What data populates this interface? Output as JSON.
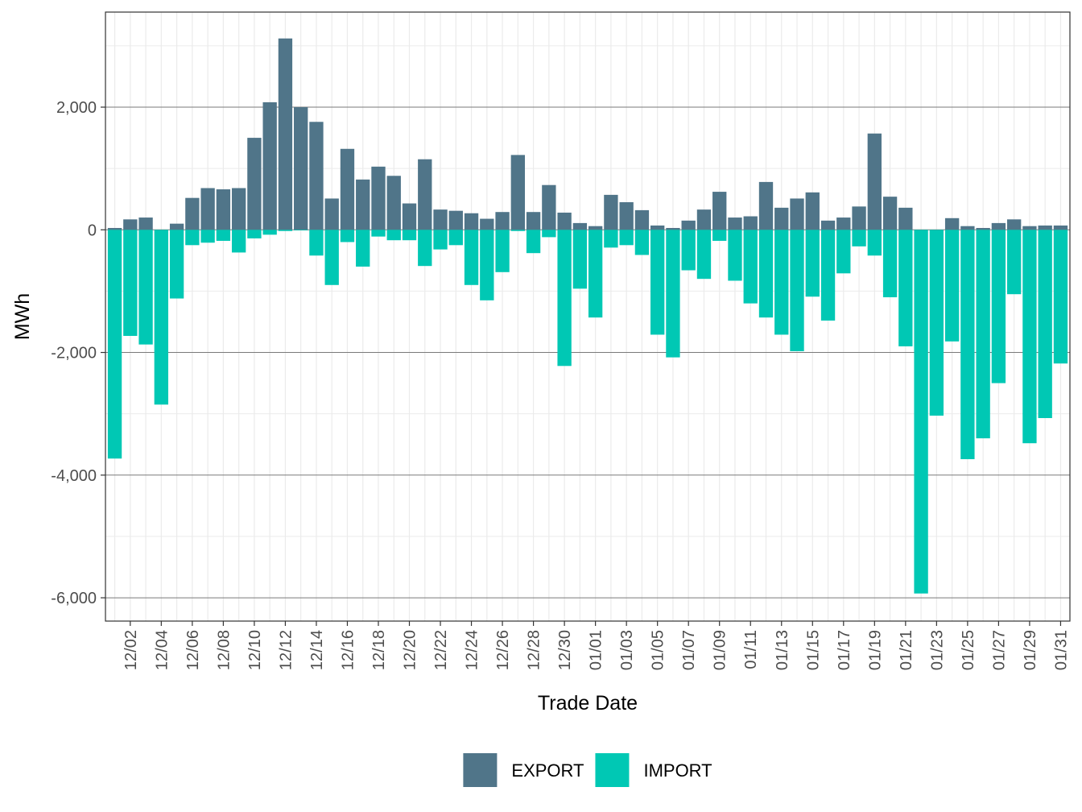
{
  "chart_data": {
    "type": "bar",
    "xlabel": "Trade Date",
    "ylabel": "MWh",
    "ylim": [
      -6380,
      3550
    ],
    "yticks": [
      -6000,
      -4000,
      -2000,
      0,
      2000
    ],
    "ytick_labels": [
      "-6,000",
      "-4,000",
      "-2,000",
      "0",
      "2,000"
    ],
    "grid": true,
    "legend_position": "bottom",
    "colors": {
      "EXPORT": "#507589",
      "IMPORT": "#00c8b4"
    },
    "categories": [
      "12/01",
      "12/02",
      "12/03",
      "12/04",
      "12/05",
      "12/06",
      "12/07",
      "12/08",
      "12/09",
      "12/10",
      "12/11",
      "12/12",
      "12/13",
      "12/14",
      "12/15",
      "12/16",
      "12/17",
      "12/18",
      "12/19",
      "12/20",
      "12/21",
      "12/22",
      "12/23",
      "12/24",
      "12/25",
      "12/26",
      "12/27",
      "12/28",
      "12/29",
      "12/30",
      "12/31",
      "01/01",
      "01/02",
      "01/03",
      "01/04",
      "01/05",
      "01/06",
      "01/07",
      "01/08",
      "01/09",
      "01/10",
      "01/11",
      "01/12",
      "01/13",
      "01/14",
      "01/15",
      "01/16",
      "01/17",
      "01/18",
      "01/19",
      "01/20",
      "01/21",
      "01/22",
      "01/23",
      "01/24",
      "01/25",
      "01/26",
      "01/27",
      "01/28",
      "01/29",
      "01/30",
      "01/31"
    ],
    "tick_labels": [
      "12/02",
      "12/04",
      "12/06",
      "12/08",
      "12/10",
      "12/12",
      "12/14",
      "12/16",
      "12/18",
      "12/20",
      "12/22",
      "12/24",
      "12/26",
      "12/28",
      "12/30",
      "01/01",
      "01/03",
      "01/05",
      "01/07",
      "01/09",
      "01/11",
      "01/13",
      "01/15",
      "01/17",
      "01/19",
      "01/21",
      "01/23",
      "01/25",
      "01/27",
      "01/29",
      "01/31"
    ],
    "series": [
      {
        "name": "EXPORT",
        "values": [
          30,
          170,
          200,
          0,
          100,
          520,
          680,
          660,
          680,
          1500,
          2080,
          3120,
          2000,
          1760,
          510,
          1320,
          820,
          1030,
          880,
          430,
          1150,
          330,
          310,
          270,
          180,
          290,
          1220,
          290,
          730,
          280,
          110,
          60,
          570,
          450,
          320,
          70,
          30,
          150,
          330,
          620,
          200,
          220,
          780,
          360,
          510,
          610,
          150,
          200,
          380,
          1570,
          540,
          360,
          0,
          0,
          190,
          60,
          30,
          110,
          170,
          60,
          70,
          70
        ]
      },
      {
        "name": "IMPORT",
        "values": [
          -3730,
          -1730,
          -1870,
          -2850,
          -1120,
          -250,
          -210,
          -180,
          -370,
          -140,
          -80,
          -20,
          -10,
          -420,
          -900,
          -200,
          -600,
          -110,
          -170,
          -170,
          -590,
          -320,
          -250,
          -900,
          -1150,
          -690,
          -20,
          -380,
          -120,
          -2220,
          -960,
          -1430,
          -290,
          -250,
          -410,
          -1710,
          -2080,
          -660,
          -800,
          -180,
          -830,
          -1200,
          -1430,
          -1710,
          -1980,
          -1090,
          -1480,
          -710,
          -270,
          -420,
          -1100,
          -1900,
          -5930,
          -3030,
          -1820,
          -3740,
          -3400,
          -2500,
          -1050,
          -3480,
          -3070,
          -2180
        ]
      }
    ]
  }
}
